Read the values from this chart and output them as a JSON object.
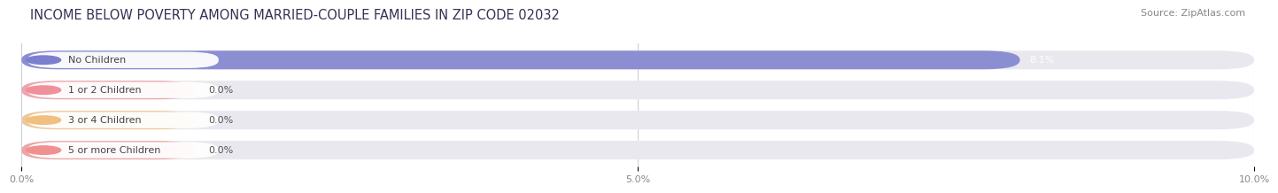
{
  "title": "INCOME BELOW POVERTY AMONG MARRIED-COUPLE FAMILIES IN ZIP CODE 02032",
  "source": "Source: ZipAtlas.com",
  "categories": [
    "No Children",
    "1 or 2 Children",
    "3 or 4 Children",
    "5 or more Children"
  ],
  "values": [
    8.1,
    0.0,
    0.0,
    0.0
  ],
  "bar_colors": [
    "#7b7fcc",
    "#f0909a",
    "#f0c080",
    "#f09090"
  ],
  "dot_colors": [
    "#7b7fcc",
    "#f0909a",
    "#f0c080",
    "#f09090"
  ],
  "xlim": [
    0,
    10.0
  ],
  "xticks": [
    0.0,
    5.0,
    10.0
  ],
  "xtick_labels": [
    "0.0%",
    "5.0%",
    "10.0%"
  ],
  "value_labels": [
    "8.1%",
    "0.0%",
    "0.0%",
    "0.0%"
  ],
  "background_color": "#f5f5fa",
  "bar_bg_color": "#e8e8ee",
  "bar_bg_color2": "#eeeeF4",
  "title_fontsize": 10.5,
  "source_fontsize": 8,
  "label_fontsize": 8,
  "value_fontsize": 8,
  "tick_fontsize": 8,
  "short_bar_extent": 1.4
}
